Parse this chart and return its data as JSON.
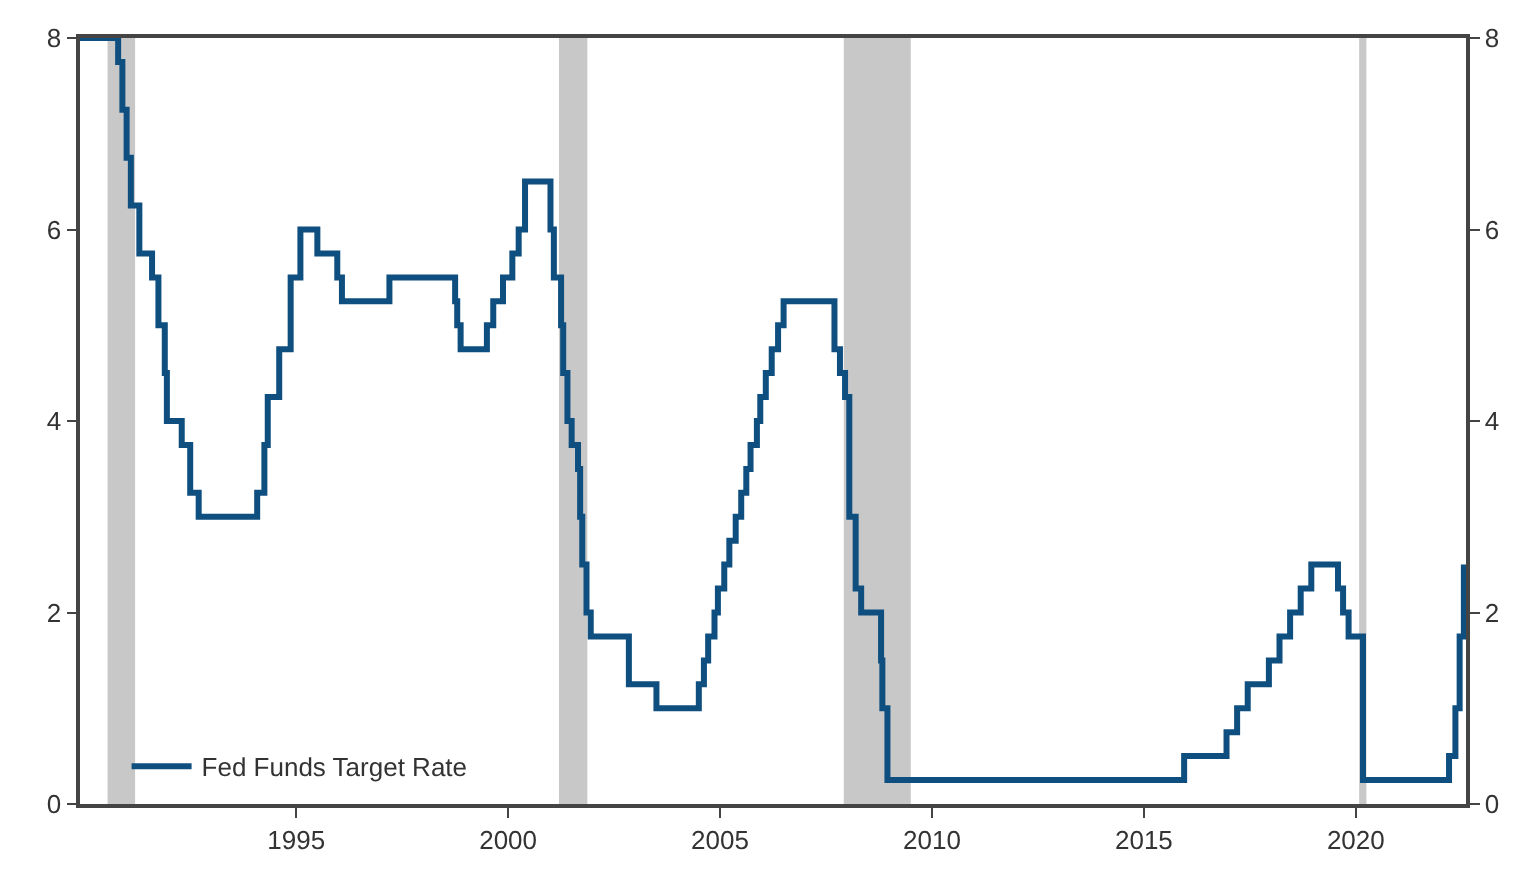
{
  "chart_data": {
    "type": "step",
    "xlim": [
      1989.9,
      2022.6
    ],
    "xticks": [
      1995,
      2000,
      2005,
      2010,
      2015,
      2020
    ],
    "ylim": [
      0,
      8
    ],
    "yticks": [
      0,
      2,
      4,
      6,
      8
    ],
    "y2lim": [
      0,
      8
    ],
    "y2ticks": [
      0,
      2,
      4,
      6,
      8
    ],
    "grid": false,
    "legend": "bottom left",
    "line_style": "solid",
    "marker": "none",
    "series": [
      {
        "name": "Fed Funds Target Rate",
        "color": "#0f4f80",
        "x": [
          1989.9,
          1990.55,
          1990.8,
          1990.9,
          1991.0,
          1991.1,
          1991.3,
          1991.6,
          1991.75,
          1991.9,
          1991.95,
          1992.3,
          1992.5,
          1992.7,
          1994.08,
          1994.25,
          1994.33,
          1994.6,
          1994.87,
          1995.1,
          1995.5,
          1995.97,
          1996.08,
          1997.2,
          1998.75,
          1998.8,
          1998.88,
          1999.5,
          1999.65,
          1999.88,
          2000.1,
          2000.25,
          2000.4,
          2001.0,
          2001.08,
          2001.25,
          2001.3,
          2001.4,
          2001.5,
          2001.65,
          2001.7,
          2001.75,
          2001.85,
          2001.95,
          2002.85,
          2003.5,
          2004.5,
          2004.62,
          2004.72,
          2004.87,
          2004.95,
          2005.1,
          2005.22,
          2005.37,
          2005.5,
          2005.62,
          2005.72,
          2005.87,
          2005.95,
          2006.08,
          2006.22,
          2006.37,
          2006.5,
          2007.7,
          2007.83,
          2007.95,
          2008.05,
          2008.2,
          2008.33,
          2008.8,
          2008.83,
          2008.95,
          2015.95,
          2016.95,
          2017.2,
          2017.45,
          2017.95,
          2018.2,
          2018.45,
          2018.7,
          2018.95,
          2019.58,
          2019.7,
          2019.83,
          2020.17,
          2022.2,
          2022.35,
          2022.45,
          2022.55
        ],
        "values": [
          8.0,
          8.0,
          7.75,
          7.25,
          6.75,
          6.25,
          5.75,
          5.5,
          5.0,
          4.5,
          4.0,
          3.75,
          3.25,
          3.0,
          3.25,
          3.75,
          4.25,
          4.75,
          5.5,
          6.0,
          5.75,
          5.5,
          5.25,
          5.5,
          5.25,
          5.0,
          4.75,
          5.0,
          5.25,
          5.5,
          5.75,
          6.0,
          6.5,
          6.0,
          5.5,
          5.0,
          4.5,
          4.0,
          3.75,
          3.5,
          3.0,
          2.5,
          2.0,
          1.75,
          1.25,
          1.0,
          1.25,
          1.5,
          1.75,
          2.0,
          2.25,
          2.5,
          2.75,
          3.0,
          3.25,
          3.5,
          3.75,
          4.0,
          4.25,
          4.5,
          4.75,
          5.0,
          5.25,
          4.75,
          4.5,
          4.25,
          3.0,
          2.25,
          2.0,
          1.5,
          1.0,
          0.25,
          0.5,
          0.75,
          1.0,
          1.25,
          1.5,
          1.75,
          2.0,
          2.25,
          2.5,
          2.25,
          2.0,
          1.75,
          0.25,
          0.5,
          1.0,
          1.75,
          2.5
        ]
      }
    ],
    "bands": [
      {
        "axis": "x",
        "from": 1990.55,
        "to": 1991.2,
        "color": "#c8c8c8"
      },
      {
        "axis": "x",
        "from": 2001.2,
        "to": 2001.87,
        "color": "#c8c8c8"
      },
      {
        "axis": "x",
        "from": 2007.92,
        "to": 2009.5,
        "color": "#c8c8c8"
      },
      {
        "axis": "x",
        "from": 2020.08,
        "to": 2020.25,
        "color": "#c8c8c8"
      }
    ]
  }
}
